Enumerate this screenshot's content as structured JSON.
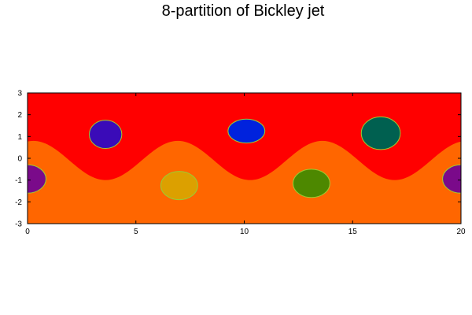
{
  "chart_data": {
    "type": "heatmap",
    "title": "8-partition of Bickley jet",
    "xlabel": "",
    "ylabel": "",
    "xlim": [
      0,
      20
    ],
    "ylim": [
      -3,
      3
    ],
    "x_ticks": [
      0,
      5,
      10,
      15,
      20
    ],
    "y_ticks": [
      -3,
      -2,
      -1,
      0,
      1,
      2,
      3
    ],
    "x_tick_labels": [
      "0",
      "5",
      "10",
      "15",
      "20"
    ],
    "y_tick_labels": [
      "-3",
      "-2",
      "-1",
      "0",
      "1",
      "2",
      "3"
    ],
    "grid": false,
    "legend": "none",
    "partitions": [
      {
        "id": 1,
        "color": "#ff0000",
        "region": "upper background (above jet)"
      },
      {
        "id": 2,
        "color": "#ff6600",
        "region": "lower background (below jet)"
      },
      {
        "id": 3,
        "color": "#3a0bb8",
        "region": "vortex",
        "center": [
          3.6,
          1.1
        ],
        "radius": [
          0.75,
          0.65
        ]
      },
      {
        "id": 4,
        "color": "#0022dd",
        "region": "vortex",
        "center": [
          10.1,
          1.25
        ],
        "radius": [
          0.85,
          0.55
        ]
      },
      {
        "id": 5,
        "color": "#006050",
        "region": "vortex",
        "center": [
          16.3,
          1.15
        ],
        "radius": [
          0.9,
          0.75
        ]
      },
      {
        "id": 6,
        "color": "#dca000",
        "region": "vortex",
        "center": [
          7.0,
          -1.25
        ],
        "radius": [
          0.85,
          0.65
        ]
      },
      {
        "id": 7,
        "color": "#4d8800",
        "region": "vortex",
        "center": [
          13.1,
          -1.15
        ],
        "radius": [
          0.85,
          0.65
        ]
      },
      {
        "id": 8,
        "color": "#7a0a8a",
        "region": "vortex (periodic, split at x=0/20)",
        "center": [
          0.0,
          -0.95
        ],
        "radius": [
          0.85,
          0.65
        ]
      }
    ],
    "boundary": {
      "description": "sinusoidal interface between upper and lower regions",
      "mean_y": -0.1,
      "amplitude": 0.9,
      "wavelength": 6.67,
      "phase_x_of_trough": 3.6
    }
  }
}
